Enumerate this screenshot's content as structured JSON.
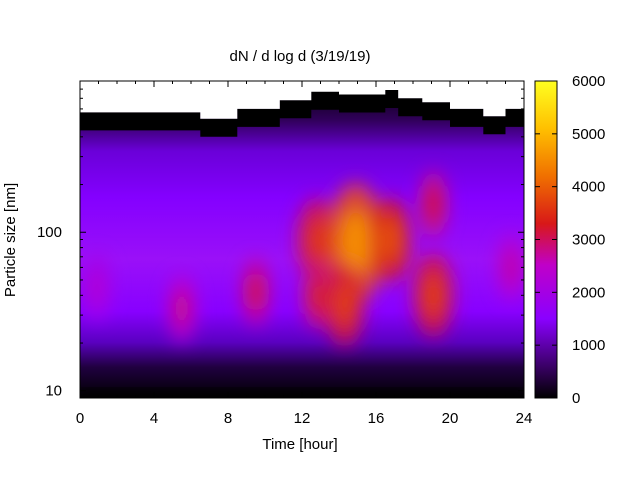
{
  "chart_data": {
    "type": "heatmap",
    "title": "dN / d log d (3/19/19)",
    "xlabel": "Time [hour]",
    "ylabel": "Particle size [nm]",
    "x_range": [
      0,
      24
    ],
    "x_ticks": [
      0,
      4,
      8,
      12,
      16,
      20,
      24
    ],
    "y_range": [
      9,
      900
    ],
    "y_scale": "log",
    "y_tick_labels": [
      {
        "value": 10,
        "label": "10"
      },
      {
        "value": 100,
        "label": "100"
      }
    ],
    "colorbar": {
      "range": [
        0,
        6000
      ],
      "ticks": [
        0,
        1000,
        2000,
        3000,
        4000,
        5000,
        6000
      ],
      "colormap": "black-purple-red-orange-yellow",
      "colors": [
        "#000000",
        "#3a0066",
        "#8a00ff",
        "#c000c8",
        "#d81818",
        "#f07000",
        "#ffc000",
        "#ffff20"
      ]
    },
    "data_ceiling": {
      "description_units": "upper size limit (nm) of measured data vs. hour",
      "hours": [
        0,
        6.5,
        8.5,
        10.8,
        12.5,
        14,
        16.5,
        17.2,
        18.5,
        20,
        21.8,
        23,
        24
      ],
      "size_nm": [
        570,
        520,
        600,
        680,
        770,
        740,
        790,
        700,
        660,
        600,
        540,
        600,
        540
      ]
    },
    "features": [
      {
        "hour": 0.9,
        "size_nm": 45,
        "level": 2300
      },
      {
        "hour": 5.5,
        "size_nm": 33,
        "level": 2900
      },
      {
        "hour": 9.5,
        "size_nm": 42,
        "level": 3200
      },
      {
        "hour": 12.8,
        "size_nm": 90,
        "level": 3600
      },
      {
        "hour": 12.8,
        "size_nm": 40,
        "level": 3400
      },
      {
        "hour": 14.9,
        "size_nm": 85,
        "level": 4600
      },
      {
        "hour": 14.3,
        "size_nm": 35,
        "level": 3700
      },
      {
        "hour": 16.8,
        "size_nm": 90,
        "level": 3900
      },
      {
        "hour": 19.1,
        "size_nm": 40,
        "level": 3700
      },
      {
        "hour": 19.1,
        "size_nm": 150,
        "level": 3300
      },
      {
        "hour": 23.3,
        "size_nm": 60,
        "level": 2700
      }
    ]
  }
}
